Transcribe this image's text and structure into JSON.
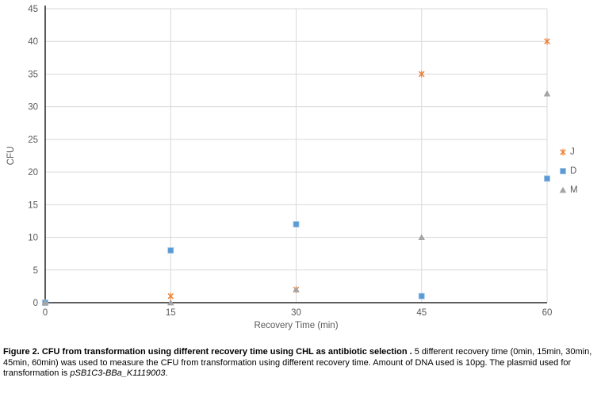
{
  "chart_data": {
    "type": "scatter",
    "title": "",
    "xlabel": "Recovery Time (min)",
    "ylabel": "CFU",
    "xlim": [
      0,
      60
    ],
    "ylim": [
      0,
      45
    ],
    "x_ticks": [
      0,
      15,
      30,
      45,
      60
    ],
    "y_ticks": [
      0,
      5,
      10,
      15,
      20,
      25,
      30,
      35,
      40,
      45
    ],
    "grid": true,
    "legend_position": "right",
    "x": [
      0,
      15,
      30,
      45,
      60
    ],
    "series": [
      {
        "name": "J",
        "marker": "x-star",
        "color": "#ED7D31",
        "values": [
          0,
          1,
          2,
          35,
          40
        ]
      },
      {
        "name": "D",
        "marker": "square",
        "color": "#5B9BD5",
        "values": [
          0,
          8,
          12,
          1,
          19
        ]
      },
      {
        "name": "M",
        "marker": "triangle",
        "color": "#A5A5A5",
        "values": [
          0,
          0,
          2,
          10,
          32
        ]
      }
    ]
  },
  "caption": {
    "bold": "Figure 2. CFU from transformation using different recovery time using CHL as antibiotic selection .",
    "normal": " 5 different recovery time (0min, 15min, 30min, 45min, 60min) was used to measure the CFU from transformation using different recovery time. Amount of DNA used is 10pg. The plasmid used for transformation is ",
    "italic": "pSB1C3-BBa_K1119003",
    "end": "."
  },
  "colors": {
    "gridline": "#D9D9D9",
    "axis": "#474747",
    "tick_label": "#595959",
    "axis_title": "#595959",
    "legend_text": "#595959",
    "background": "#FFFFFF"
  }
}
